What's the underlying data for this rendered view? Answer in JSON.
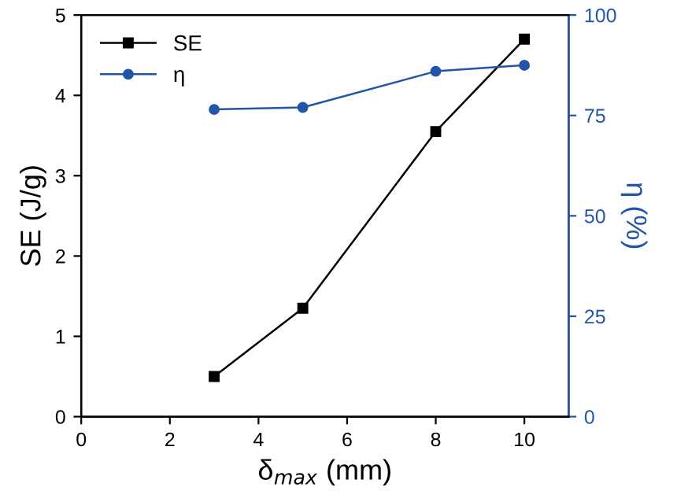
{
  "chart_data": {
    "type": "line",
    "xlabel": "δ$_{max}$ (mm)",
    "ylabel": "SE (J/g)",
    "y2label": "η (%)",
    "x": [
      3,
      5,
      8,
      10
    ],
    "series": [
      {
        "name": "SE",
        "color": "#000000",
        "marker": "square",
        "values": [
          0.5,
          1.35,
          3.55,
          4.7
        ]
      },
      {
        "name": "η",
        "color": "#2255a8",
        "marker": "circle",
        "axis": "y2",
        "values": [
          76.5,
          77,
          86,
          87.5
        ]
      }
    ],
    "xlim": [
      0,
      11
    ],
    "xticks": [
      0,
      2,
      4,
      6,
      8,
      10
    ],
    "ylim": [
      0,
      5
    ],
    "yticks": [
      0,
      1,
      2,
      3,
      4,
      5
    ],
    "y2lim": [
      0,
      100
    ],
    "y2ticks": [
      0,
      25,
      50,
      75,
      100
    ],
    "legend": "top left",
    "grid": false,
    "line_style": "solid"
  }
}
